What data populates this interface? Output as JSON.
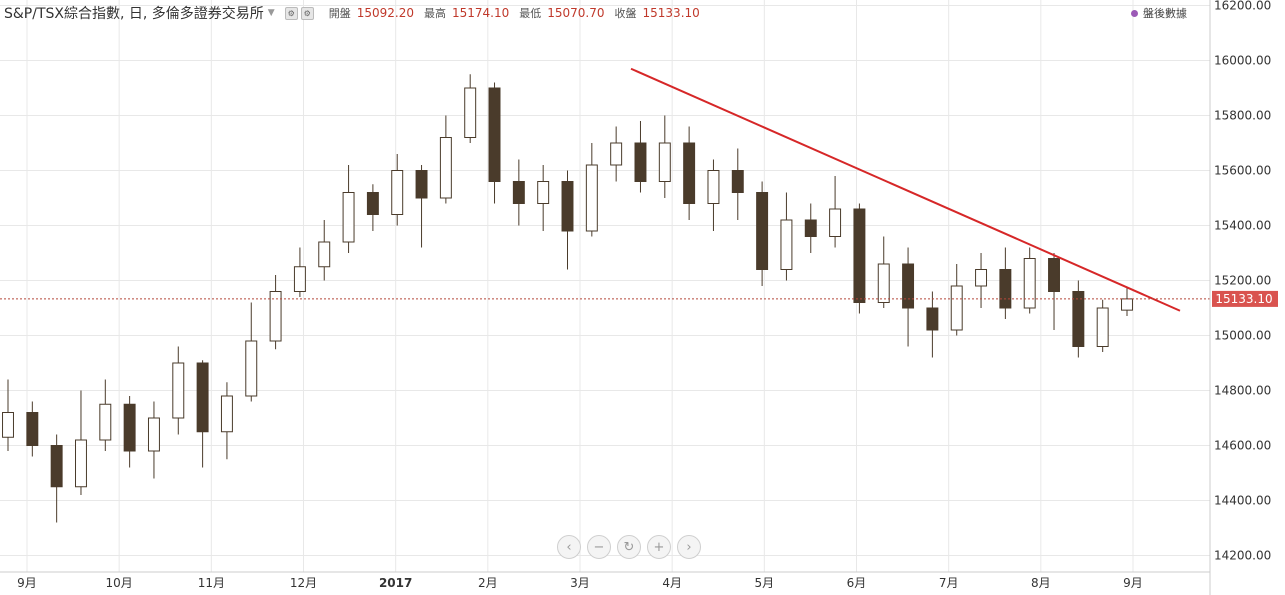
{
  "header": {
    "title": "S&P/TSX綜合指數, 日, 多倫多證券交易所",
    "ohlc": [
      {
        "label": "開盤",
        "value": "15092.20"
      },
      {
        "label": "最高",
        "value": "15174.10"
      },
      {
        "label": "最低",
        "value": "15070.70"
      },
      {
        "label": "收盤",
        "value": "15133.10"
      }
    ],
    "after_hours_label": "盤後數據"
  },
  "colors": {
    "candle": "#4a3b2b",
    "trendline": "#d62728",
    "price_tag": "#d9534f",
    "price_line": "#b5473b",
    "grid": "#e8e8e8",
    "axis_text": "#333333"
  },
  "chart_data": {
    "type": "candlestick",
    "ylim": [
      14140,
      16220
    ],
    "y_ticks": [
      "14200.00",
      "14400.00",
      "14600.00",
      "14800.00",
      "15000.00",
      "15200.00",
      "15400.00",
      "15600.00",
      "15800.00",
      "16000.00",
      "16200.00"
    ],
    "x_ticks": [
      "9月",
      "10月",
      "11月",
      "12月",
      "2017",
      "2月",
      "3月",
      "4月",
      "5月",
      "6月",
      "7月",
      "8月",
      "9月"
    ],
    "last_price": 15133.1,
    "last_price_label": "15133.10",
    "trendline": [
      [
        0.0,
        15970
      ],
      [
        1.0,
        15090
      ]
    ],
    "series": [
      {
        "period": "Sep 2016",
        "open": 14630,
        "close": 14720,
        "low": 14580,
        "high": 14840
      },
      {
        "period": "Sep 2016",
        "open": 14720,
        "close": 14600,
        "low": 14560,
        "high": 14760
      },
      {
        "period": "Sep 2016",
        "open": 14600,
        "close": 14450,
        "low": 14320,
        "high": 14640
      },
      {
        "period": "Oct 2016",
        "open": 14450,
        "close": 14620,
        "low": 14420,
        "high": 14800
      },
      {
        "period": "Oct 2016",
        "open": 14620,
        "close": 14750,
        "low": 14580,
        "high": 14840
      },
      {
        "period": "Oct 2016",
        "open": 14750,
        "close": 14580,
        "low": 14520,
        "high": 14780
      },
      {
        "period": "Oct 2016",
        "open": 14580,
        "close": 14700,
        "low": 14480,
        "high": 14760
      },
      {
        "period": "Nov 2016",
        "open": 14700,
        "close": 14900,
        "low": 14640,
        "high": 14960
      },
      {
        "period": "Nov 2016",
        "open": 14900,
        "close": 14650,
        "low": 14520,
        "high": 14910
      },
      {
        "period": "Nov 2016",
        "open": 14650,
        "close": 14780,
        "low": 14550,
        "high": 14830
      },
      {
        "period": "Nov 2016",
        "open": 14780,
        "close": 14980,
        "low": 14760,
        "high": 15120
      },
      {
        "period": "Dec 2016",
        "open": 14980,
        "close": 15160,
        "low": 14950,
        "high": 15220
      },
      {
        "period": "Dec 2016",
        "open": 15160,
        "close": 15250,
        "low": 15140,
        "high": 15320
      },
      {
        "period": "Dec 2016",
        "open": 15250,
        "close": 15340,
        "low": 15200,
        "high": 15420
      },
      {
        "period": "Jan 2017",
        "open": 15340,
        "close": 15520,
        "low": 15300,
        "high": 15620
      },
      {
        "period": "Jan 2017",
        "open": 15520,
        "close": 15440,
        "low": 15380,
        "high": 15550
      },
      {
        "period": "Jan 2017",
        "open": 15440,
        "close": 15600,
        "low": 15400,
        "high": 15660
      },
      {
        "period": "Feb 2017",
        "open": 15600,
        "close": 15500,
        "low": 15320,
        "high": 15620
      },
      {
        "period": "Feb 2017",
        "open": 15500,
        "close": 15720,
        "low": 15480,
        "high": 15800
      },
      {
        "period": "Feb 2017",
        "open": 15720,
        "close": 15900,
        "low": 15700,
        "high": 15950
      },
      {
        "period": "Mar 2017",
        "open": 15900,
        "close": 15560,
        "low": 15480,
        "high": 15920
      },
      {
        "period": "Mar 2017",
        "open": 15560,
        "close": 15480,
        "low": 15400,
        "high": 15640
      },
      {
        "period": "Mar 2017",
        "open": 15480,
        "close": 15560,
        "low": 15380,
        "high": 15620
      },
      {
        "period": "Mar 2017",
        "open": 15560,
        "close": 15380,
        "low": 15240,
        "high": 15600
      },
      {
        "period": "Apr 2017",
        "open": 15380,
        "close": 15620,
        "low": 15360,
        "high": 15700
      },
      {
        "period": "Apr 2017",
        "open": 15620,
        "close": 15700,
        "low": 15560,
        "high": 15760
      },
      {
        "period": "Apr 2017",
        "open": 15700,
        "close": 15560,
        "low": 15520,
        "high": 15780
      },
      {
        "period": "Apr 2017",
        "open": 15560,
        "close": 15700,
        "low": 15500,
        "high": 15800
      },
      {
        "period": "May 2017",
        "open": 15700,
        "close": 15480,
        "low": 15420,
        "high": 15760
      },
      {
        "period": "May 2017",
        "open": 15480,
        "close": 15600,
        "low": 15380,
        "high": 15640
      },
      {
        "period": "May 2017",
        "open": 15600,
        "close": 15520,
        "low": 15420,
        "high": 15680
      },
      {
        "period": "May 2017",
        "open": 15520,
        "close": 15240,
        "low": 15180,
        "high": 15560
      },
      {
        "period": "Jun 2017",
        "open": 15240,
        "close": 15420,
        "low": 15200,
        "high": 15520
      },
      {
        "period": "Jun 2017",
        "open": 15420,
        "close": 15360,
        "low": 15300,
        "high": 15480
      },
      {
        "period": "Jun 2017",
        "open": 15360,
        "close": 15460,
        "low": 15320,
        "high": 15580
      },
      {
        "period": "Jun 2017",
        "open": 15460,
        "close": 15120,
        "low": 15080,
        "high": 15480
      },
      {
        "period": "Jul 2017",
        "open": 15120,
        "close": 15260,
        "low": 15100,
        "high": 15360
      },
      {
        "period": "Jul 2017",
        "open": 15260,
        "close": 15100,
        "low": 14960,
        "high": 15320
      },
      {
        "period": "Jul 2017",
        "open": 15100,
        "close": 15020,
        "low": 14920,
        "high": 15160
      },
      {
        "period": "Jul 2017",
        "open": 15020,
        "close": 15180,
        "low": 15000,
        "high": 15260
      },
      {
        "period": "Aug 2017",
        "open": 15180,
        "close": 15240,
        "low": 15100,
        "high": 15300
      },
      {
        "period": "Aug 2017",
        "open": 15240,
        "close": 15100,
        "low": 15060,
        "high": 15320
      },
      {
        "period": "Aug 2017",
        "open": 15100,
        "close": 15280,
        "low": 15080,
        "high": 15320
      },
      {
        "period": "Aug 2017",
        "open": 15280,
        "close": 15160,
        "low": 15020,
        "high": 15300
      },
      {
        "period": "Aug 2017",
        "open": 15160,
        "close": 14960,
        "low": 14920,
        "high": 15200
      },
      {
        "period": "Aug 2017",
        "open": 14960,
        "close": 15100,
        "low": 14940,
        "high": 15130
      },
      {
        "period": "Sep 2017",
        "open": 15092.2,
        "close": 15133.1,
        "low": 15070.7,
        "high": 15174.1
      }
    ]
  }
}
